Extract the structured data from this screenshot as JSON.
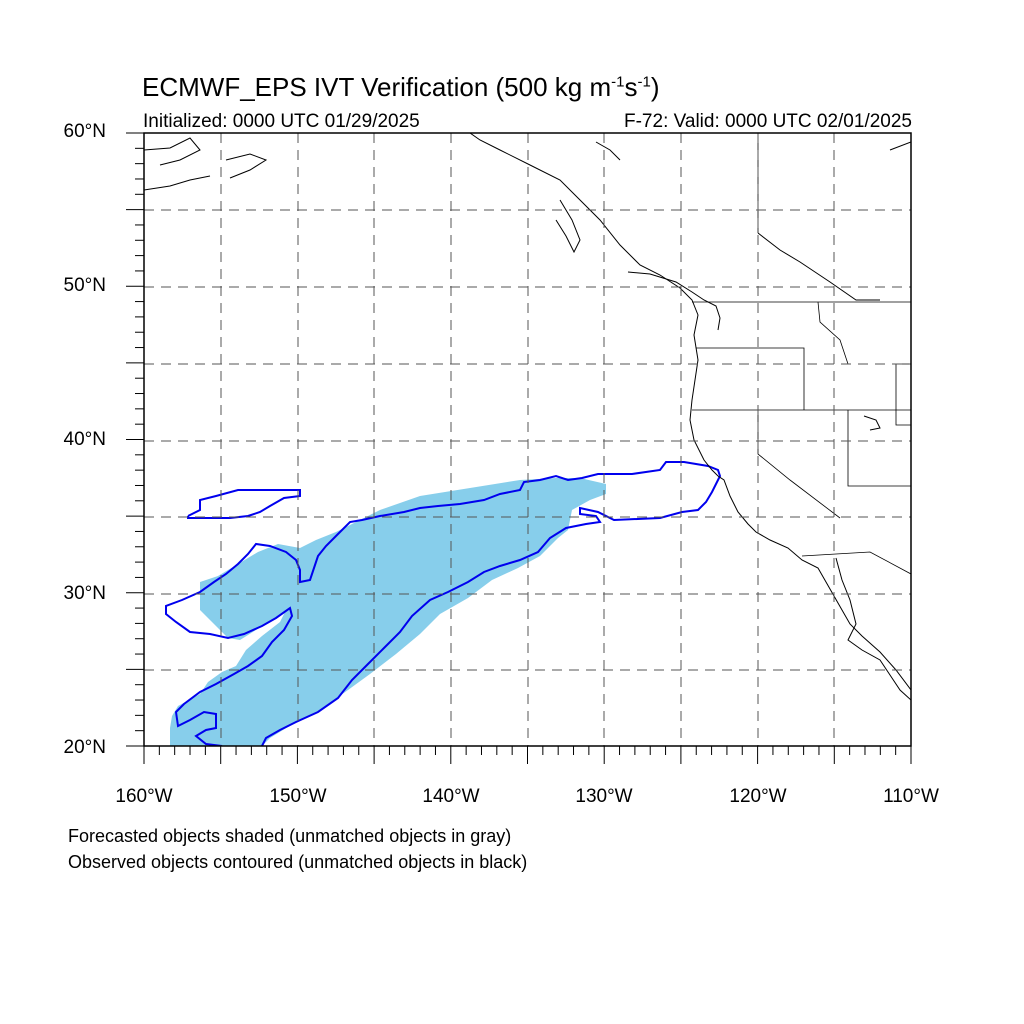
{
  "title_main": "ECMWF_EPS IVT Verification (500 kg m",
  "title_exp1": "-1",
  "title_mid": "s",
  "title_exp2": "-1",
  "title_end": ")",
  "subtitle_left": "Initialized: 0000 UTC 01/29/2025",
  "subtitle_right": "F-72: Valid: 0000 UTC 02/01/2025",
  "notes": [
    "Forecasted objects shaded (unmatched objects in gray)",
    "Observed objects contoured (unmatched objects in black)"
  ],
  "map": {
    "lon_range": [
      -160,
      -110
    ],
    "lat_range": [
      20,
      60
    ],
    "lat_labels": [
      "60°N",
      "50°N",
      "40°N",
      "30°N",
      "20°N"
    ],
    "lon_labels": [
      "160°W",
      "150°W",
      "140°W",
      "130°W",
      "120°W",
      "110°W"
    ],
    "colors": {
      "forecast_fill": "#87ceeb",
      "observed_contour": "#0000ee",
      "coast": "#000000",
      "grid": "#666666"
    }
  }
}
